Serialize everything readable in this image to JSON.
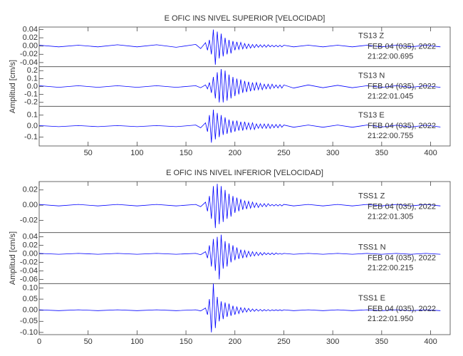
{
  "chart_data": [
    {
      "type": "line",
      "title": "E OFIC INS NIVEL SUPERIOR [VELOCIDAD]",
      "ylabel": "Amplitud [cm/s]",
      "xlim": [
        0,
        420
      ],
      "xticks": [
        50,
        100,
        150,
        200,
        250,
        300,
        350,
        400
      ],
      "x": [
        0,
        20,
        40,
        60,
        80,
        100,
        120,
        140,
        160,
        165,
        170,
        172,
        174,
        176,
        178,
        180,
        182,
        184,
        186,
        188,
        190,
        192,
        194,
        196,
        198,
        200,
        202,
        204,
        206,
        208,
        210,
        212,
        214,
        216,
        218,
        220,
        222,
        224,
        226,
        228,
        230,
        232,
        234,
        236,
        238,
        240,
        242,
        244,
        246,
        248,
        250,
        260,
        275,
        290,
        305,
        320,
        335,
        350,
        365,
        380,
        395,
        410
      ],
      "panels": [
        {
          "name": "TS13   Z",
          "date": "FEB 04 (035), 2022",
          "time": "21:22:00.695",
          "color": "#0000ff",
          "ylim": [
            -0.05,
            0.046
          ],
          "yticks": [
            0.04,
            0.02,
            {
              "value": 0,
              "label": "0.00"
            },
            -0.02,
            -0.04
          ],
          "values": [
            0.002,
            -0.002,
            0.002,
            -0.002,
            0.003,
            -0.002,
            0.003,
            -0.003,
            0.004,
            -0.006,
            0.008,
            -0.01,
            0.015,
            -0.02,
            0.04,
            -0.045,
            0.035,
            -0.03,
            0.03,
            -0.025,
            0.02,
            -0.02,
            0.015,
            -0.018,
            0.012,
            -0.01,
            0.01,
            -0.008,
            0.009,
            -0.007,
            0.006,
            -0.006,
            0.005,
            -0.005,
            0.004,
            -0.004,
            0.004,
            -0.003,
            0.003,
            -0.003,
            0.003,
            -0.003,
            0.003,
            -0.002,
            0.002,
            -0.002,
            0.002,
            -0.002,
            0.002,
            -0.002,
            0.002,
            -0.002,
            0.002,
            -0.002,
            0.002,
            -0.002,
            0.002,
            -0.002,
            0.002,
            -0.002,
            0.002,
            -0.002
          ]
        },
        {
          "name": "TS13   N",
          "date": "FEB 04 (035), 2022",
          "time": "21:22:01.045",
          "color": "#0000ff",
          "ylim": [
            -0.25,
            0.25
          ],
          "yticks": [
            0.2,
            0.1,
            {
              "value": 0,
              "label": "0.0"
            },
            -0.1,
            -0.2
          ],
          "values": [
            0.01,
            -0.01,
            0.01,
            -0.01,
            0.01,
            -0.01,
            0.01,
            -0.01,
            0.01,
            -0.015,
            0.02,
            -0.03,
            0.05,
            -0.08,
            0.12,
            -0.15,
            0.18,
            -0.2,
            0.22,
            -0.2,
            0.2,
            -0.18,
            0.15,
            -0.15,
            0.12,
            -0.12,
            0.1,
            -0.1,
            0.09,
            -0.08,
            0.07,
            -0.07,
            0.06,
            -0.06,
            0.05,
            -0.05,
            0.05,
            -0.04,
            0.04,
            -0.04,
            0.03,
            -0.03,
            0.03,
            -0.03,
            0.03,
            -0.02,
            0.02,
            -0.02,
            0.02,
            -0.02,
            0.02,
            -0.02,
            0.02,
            -0.015,
            0.015,
            -0.015,
            0.01,
            -0.01,
            0.01,
            -0.01,
            0.01,
            -0.01
          ]
        },
        {
          "name": "TS13   E",
          "date": "FEB 04 (035), 2022",
          "time": "21:22:00.755",
          "color": "#0000ff",
          "ylim": [
            -0.18,
            0.18
          ],
          "yticks": [
            0.1,
            {
              "value": 0,
              "label": "0.0"
            },
            -0.1
          ],
          "values": [
            0.005,
            -0.005,
            0.005,
            -0.005,
            0.005,
            -0.005,
            0.005,
            -0.005,
            0.01,
            -0.015,
            0.03,
            -0.05,
            0.1,
            -0.15,
            0.15,
            -0.12,
            0.12,
            -0.1,
            0.1,
            -0.08,
            0.08,
            -0.07,
            0.06,
            -0.06,
            0.05,
            -0.05,
            0.05,
            -0.04,
            0.04,
            -0.04,
            0.04,
            -0.03,
            0.03,
            -0.03,
            0.03,
            -0.03,
            0.02,
            -0.02,
            0.02,
            -0.02,
            0.02,
            -0.02,
            0.02,
            -0.02,
            0.015,
            -0.015,
            0.015,
            -0.015,
            0.015,
            -0.01,
            0.01,
            -0.01,
            0.01,
            -0.01,
            0.01,
            -0.01,
            0.01,
            -0.008,
            0.008,
            -0.008,
            0.008,
            -0.008
          ]
        }
      ]
    },
    {
      "type": "line",
      "title": "E OFIC INS NIVEL INFERIOR [VELOCIDAD]",
      "ylabel": "Amplitud [cm/s]",
      "xlim": [
        0,
        420
      ],
      "xticks": [
        0,
        50,
        100,
        150,
        200,
        250,
        300,
        350,
        400
      ],
      "x": [
        0,
        20,
        40,
        60,
        80,
        100,
        120,
        140,
        160,
        165,
        170,
        172,
        174,
        176,
        178,
        180,
        182,
        184,
        186,
        188,
        190,
        192,
        194,
        196,
        198,
        200,
        202,
        204,
        206,
        208,
        210,
        212,
        214,
        216,
        218,
        220,
        222,
        224,
        226,
        228,
        230,
        232,
        234,
        236,
        238,
        240,
        242,
        244,
        246,
        248,
        250,
        260,
        275,
        290,
        305,
        320,
        335,
        350,
        365,
        380,
        395,
        410
      ],
      "panels": [
        {
          "name": "TSS1   Z",
          "date": "FEB 04 (035), 2022",
          "time": "21:22:01.305",
          "color": "#0000ff",
          "ylim": [
            -0.036,
            0.031
          ],
          "yticks": [
            0.02,
            {
              "value": 0,
              "label": "0.00"
            },
            -0.02
          ],
          "values": [
            0.001,
            -0.001,
            0.001,
            -0.001,
            0.001,
            -0.001,
            0.001,
            -0.001,
            0.001,
            -0.002,
            0.004,
            -0.008,
            0.012,
            -0.018,
            0.025,
            -0.03,
            0.028,
            -0.025,
            0.025,
            -0.022,
            0.02,
            -0.018,
            0.015,
            -0.015,
            0.012,
            -0.01,
            0.01,
            -0.008,
            0.008,
            -0.006,
            0.006,
            -0.005,
            0.005,
            -0.004,
            0.004,
            -0.003,
            0.003,
            -0.003,
            0.002,
            -0.002,
            0.002,
            -0.002,
            0.002,
            -0.001,
            0.001,
            -0.001,
            0.001,
            -0.001,
            0.001,
            -0.001,
            0.001,
            -0.001,
            0.001,
            -0.001,
            0.001,
            -0.001,
            0.001,
            -0.001,
            0.001,
            -0.001,
            0.001,
            -0.001
          ]
        },
        {
          "name": "TSS1   N",
          "date": "FEB 04 (035), 2022",
          "time": "21:22:00.215",
          "color": "#0000ff",
          "ylim": [
            -0.07,
            0.05
          ],
          "yticks": [
            0.04,
            0.02,
            {
              "value": 0,
              "label": "0.00"
            },
            -0.02,
            -0.04,
            -0.06
          ],
          "values": [
            0.001,
            -0.001,
            0.001,
            -0.001,
            0.001,
            -0.001,
            0.001,
            -0.001,
            0.001,
            -0.002,
            0.005,
            -0.01,
            0.02,
            -0.03,
            0.035,
            -0.04,
            0.04,
            -0.06,
            0.045,
            -0.035,
            0.03,
            -0.03,
            0.025,
            -0.02,
            0.02,
            -0.015,
            0.015,
            -0.012,
            0.01,
            -0.01,
            0.008,
            -0.008,
            0.006,
            -0.006,
            0.005,
            -0.005,
            0.004,
            -0.004,
            0.003,
            -0.003,
            0.003,
            -0.002,
            0.002,
            -0.002,
            0.002,
            -0.002,
            0.002,
            -0.001,
            0.001,
            -0.001,
            0.001,
            -0.001,
            0.001,
            -0.001,
            0.001,
            -0.001,
            0.001,
            -0.001,
            0.001,
            -0.001,
            0.001,
            -0.001
          ]
        },
        {
          "name": "TSS1   E",
          "date": "FEB 04 (035), 2022",
          "time": "21:22:01.950",
          "color": "#0000ff",
          "ylim": [
            -0.11,
            0.12
          ],
          "yticks": [
            {
              "value": 0.1,
              "label": "0.10"
            },
            0.05,
            {
              "value": 0,
              "label": "0.00"
            },
            -0.05,
            {
              "value": -0.1,
              "label": "-0.10"
            }
          ],
          "values": [
            0.002,
            -0.002,
            0.002,
            -0.002,
            0.002,
            -0.002,
            0.002,
            -0.002,
            0.002,
            -0.003,
            0.01,
            -0.02,
            0.05,
            -0.1,
            0.12,
            -0.08,
            0.06,
            -0.05,
            0.04,
            -0.04,
            0.035,
            -0.03,
            0.03,
            -0.025,
            0.02,
            -0.02,
            0.015,
            -0.015,
            0.012,
            -0.01,
            0.01,
            -0.008,
            0.008,
            -0.006,
            0.006,
            -0.005,
            0.005,
            -0.004,
            0.004,
            -0.004,
            0.003,
            -0.003,
            0.003,
            -0.003,
            0.002,
            -0.002,
            0.002,
            -0.002,
            0.002,
            -0.002,
            0.002,
            -0.002,
            0.002,
            -0.002,
            0.002,
            -0.002,
            0.002,
            -0.002,
            0.002,
            -0.002,
            0.002,
            -0.002
          ]
        }
      ]
    }
  ]
}
